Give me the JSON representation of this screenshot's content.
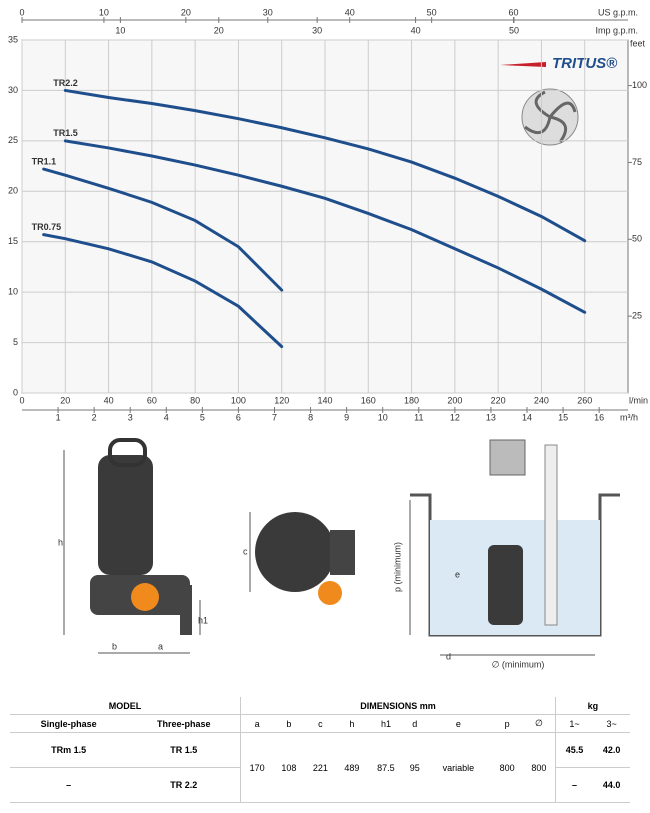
{
  "chart_data": {
    "type": "line",
    "xlabel": "l/min",
    "xlim": [
      0,
      280
    ],
    "xticks": [
      0,
      20,
      40,
      60,
      80,
      100,
      120,
      140,
      160,
      180,
      200,
      220,
      240,
      260
    ],
    "ylim": [
      0,
      35
    ],
    "yticks": [
      0,
      5,
      10,
      15,
      20,
      25,
      30,
      35
    ],
    "y2label": "feet",
    "y2lim": [
      0,
      114.83
    ],
    "y2ticks": [
      25,
      50,
      75,
      100
    ],
    "top_axis_us": {
      "label": "US g.p.m.",
      "lim": [
        0,
        73.97
      ],
      "ticks": [
        0,
        10,
        20,
        30,
        40,
        50,
        60
      ]
    },
    "top_axis_imp": {
      "label": "Imp g.p.m.",
      "lim": [
        0,
        61.59
      ],
      "ticks": [
        10,
        20,
        30,
        40,
        50
      ]
    },
    "bottom_axis_m3h": {
      "label": "m³/h",
      "lim": [
        0,
        16.8
      ],
      "ticks": [
        1,
        2,
        3,
        4,
        5,
        6,
        7,
        8,
        9,
        10,
        11,
        12,
        13,
        14,
        15,
        16
      ]
    },
    "grid": true,
    "series": [
      {
        "name": "TR2.2",
        "color": "#1f4e8c",
        "x": [
          20,
          40,
          60,
          80,
          100,
          120,
          140,
          160,
          180,
          200,
          220,
          240,
          260
        ],
        "values": [
          30,
          29.3,
          28.7,
          28,
          27.2,
          26.3,
          25.3,
          24.2,
          22.9,
          21.3,
          19.5,
          17.5,
          15.1
        ]
      },
      {
        "name": "TR1.5",
        "color": "#1f4e8c",
        "x": [
          20,
          40,
          60,
          80,
          100,
          120,
          140,
          160,
          180,
          200,
          220,
          240,
          260
        ],
        "values": [
          25,
          24.3,
          23.5,
          22.6,
          21.6,
          20.5,
          19.3,
          17.8,
          16.2,
          14.3,
          12.4,
          10.3,
          8
        ]
      },
      {
        "name": "TR1.1",
        "color": "#1f4e8c",
        "x": [
          10,
          20,
          40,
          60,
          80,
          100,
          120
        ],
        "values": [
          22.2,
          21.6,
          20.3,
          18.9,
          17.1,
          14.5,
          10.2
        ]
      },
      {
        "name": "TR0.75",
        "color": "#1f4e8c",
        "x": [
          10,
          20,
          40,
          60,
          80,
          100,
          120
        ],
        "values": [
          15.7,
          15.3,
          14.3,
          13,
          11.1,
          8.6,
          4.6
        ]
      }
    ],
    "logo": "TRITUS®"
  },
  "drawings": {
    "side": [
      "h",
      "b",
      "a",
      "h1"
    ],
    "top": [
      "c"
    ],
    "install": [
      "p (minimum)",
      "e",
      "d",
      "∅ (minimum)"
    ]
  },
  "table": {
    "groups": [
      "MODEL",
      "DIMENSIONS mm",
      "kg"
    ],
    "columns": [
      "Single-phase",
      "Three-phase",
      "a",
      "b",
      "c",
      "h",
      "h1",
      "d",
      "e",
      "p",
      "∅",
      "1~",
      "3~"
    ],
    "rows": [
      [
        "TRm 1.5",
        "TR 1.5",
        "45.5",
        "42.0"
      ],
      [
        "–",
        "TR 2.2",
        "–",
        "44.0"
      ]
    ],
    "dimensions": [
      "170",
      "108",
      "221",
      "489",
      "87.5",
      "95",
      "variable",
      "800",
      "800"
    ]
  }
}
